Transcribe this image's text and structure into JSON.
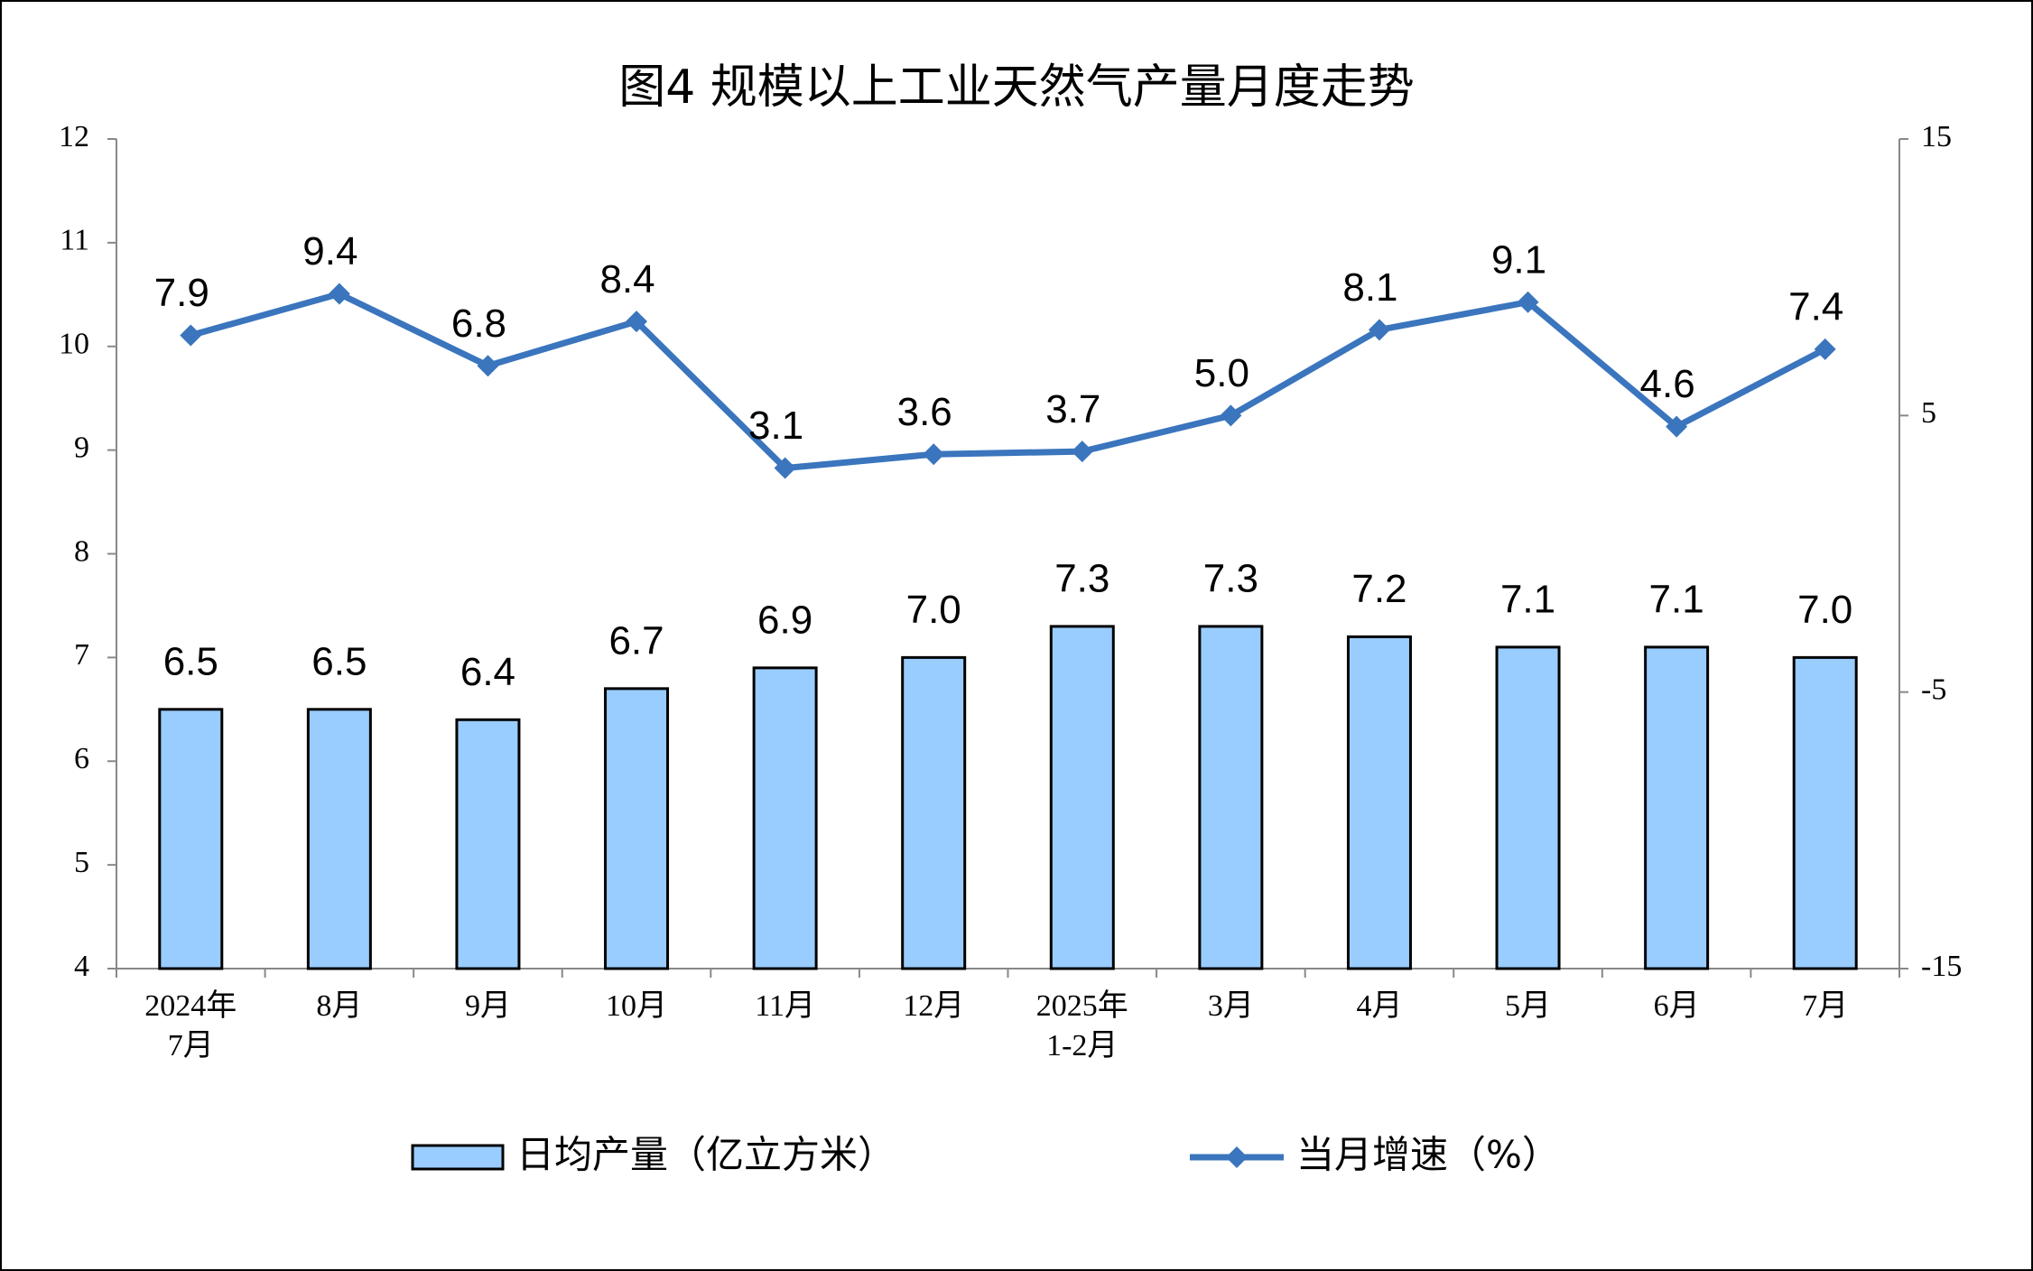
{
  "chart_data": {
    "type": "bar-line",
    "title": "图4  规模以上工业天然气产量月度走势",
    "categories": [
      "2024年\n7月",
      "8月",
      "9月",
      "10月",
      "11月",
      "12月",
      "2025年\n1-2月",
      "3月",
      "4月",
      "5月",
      "6月",
      "7月"
    ],
    "series": [
      {
        "name": "日均产量（亿立方米）",
        "type": "bar",
        "color": "#99ccff",
        "values": [
          6.5,
          6.5,
          6.4,
          6.7,
          6.9,
          7.0,
          7.3,
          7.3,
          7.2,
          7.1,
          7.1,
          7.0
        ],
        "value_labels": [
          "6.5",
          "6.5",
          "6.4",
          "6.7",
          "6.9",
          "7.0",
          "7.3",
          "7.3",
          "7.2",
          "7.1",
          "7.1",
          "7.0"
        ]
      },
      {
        "name": "当月增速（%）",
        "type": "line",
        "axis": "y2",
        "color": "#3a75bd",
        "values": [
          7.9,
          9.4,
          6.8,
          8.4,
          3.1,
          3.6,
          3.7,
          5.0,
          8.1,
          9.1,
          4.6,
          7.4
        ],
        "value_labels": [
          "7.9",
          "9.4",
          "6.8",
          "8.4",
          "3.1",
          "3.6",
          "3.7",
          "5.0",
          "8.1",
          "9.1",
          "4.6",
          "7.4"
        ]
      }
    ],
    "ylim": [
      4,
      12
    ],
    "yticks": [
      4,
      5,
      6,
      7,
      8,
      9,
      10,
      11,
      12
    ],
    "y2lim": [
      -15,
      15
    ],
    "y2ticks": [
      -15,
      -5,
      5,
      15
    ],
    "legend": "bottom"
  }
}
